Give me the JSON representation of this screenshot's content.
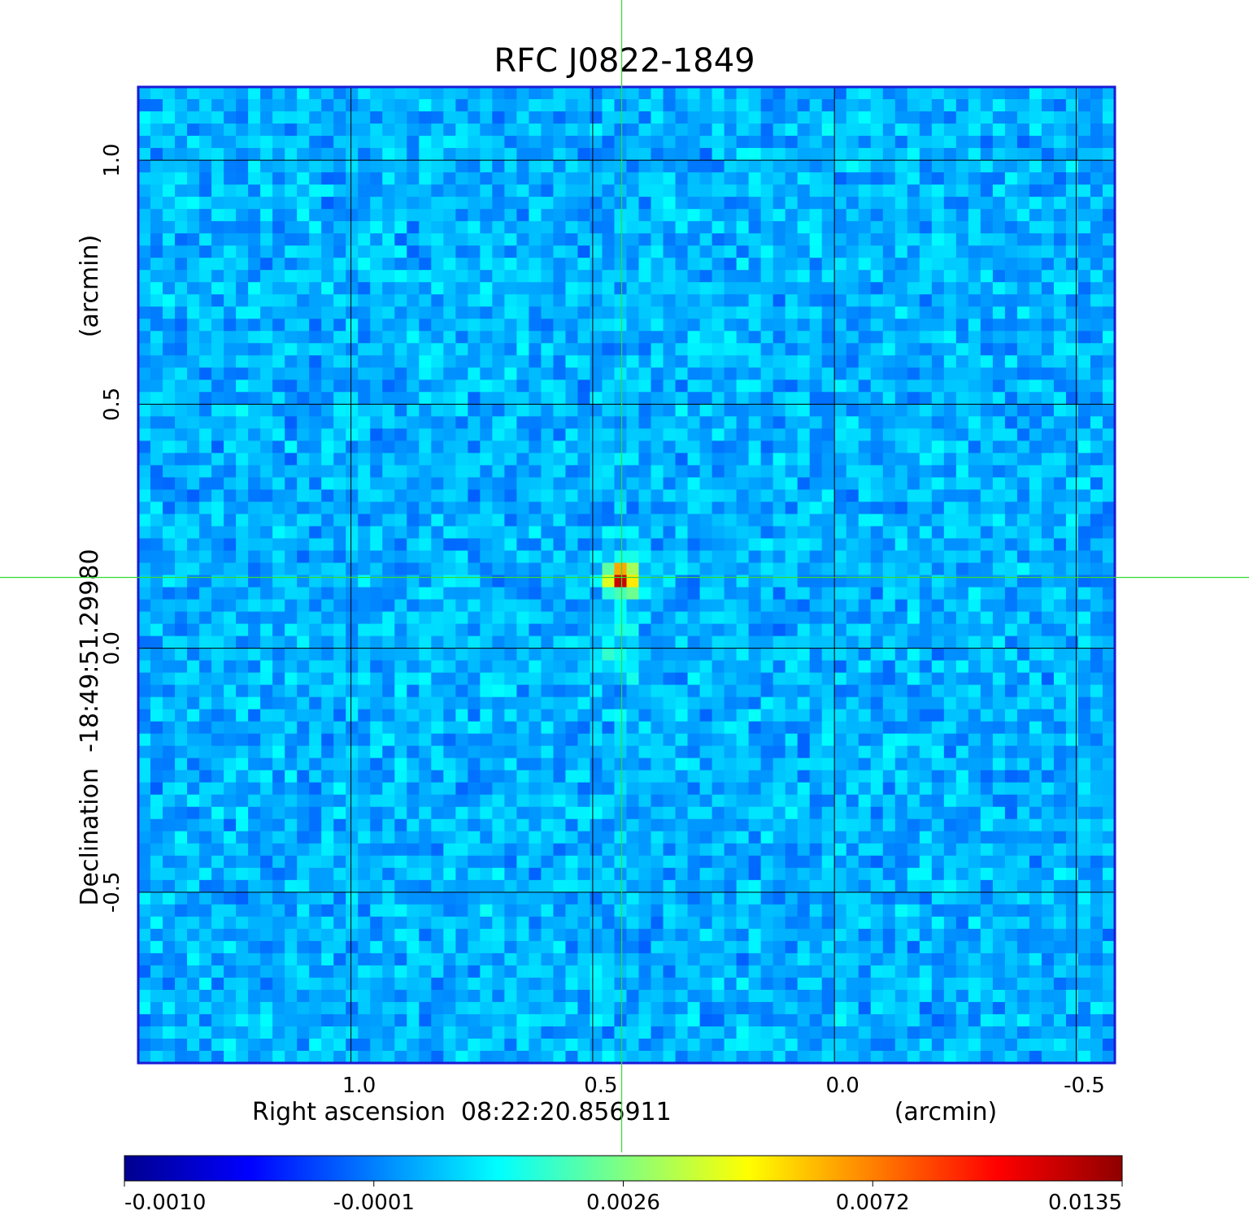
{
  "chart_data": {
    "type": "heatmap",
    "title": "RFC J0822-1849",
    "xlabel": "Right ascension  08:22:20.856911",
    "xunit": "(arcmin)",
    "ylabel": "Declination  -18:49:51.29980",
    "yunit": "(arcmin)",
    "xlim": [
      1.44,
      -0.58
    ],
    "ylim": [
      -0.85,
      1.15
    ],
    "x_ticks": [
      {
        "value": 1.0,
        "label": "1.0"
      },
      {
        "value": 0.5,
        "label": "0.5"
      },
      {
        "value": 0.0,
        "label": "0.0"
      },
      {
        "value": -0.5,
        "label": "-0.5"
      }
    ],
    "y_ticks": [
      {
        "value": 1.0,
        "label": "1.0"
      },
      {
        "value": 0.5,
        "label": "0.5"
      },
      {
        "value": 0.0,
        "label": "0.0"
      },
      {
        "value": -0.5,
        "label": "-0.5"
      }
    ],
    "grid": true,
    "crosshair": {
      "x": 0.44,
      "y": 0.145
    },
    "peak": {
      "x": 0.44,
      "y": 0.145
    },
    "colorbar": {
      "orientation": "horizontal",
      "colormap": "jet",
      "tick_labels": [
        "-0.0010",
        "-0.0001",
        "0.0026",
        "0.0072",
        "0.0135"
      ]
    },
    "colors": {
      "title": "#1010dd",
      "frame": "#1a1ad6",
      "crosshair": "#33dd33",
      "grid": "#000000"
    }
  }
}
